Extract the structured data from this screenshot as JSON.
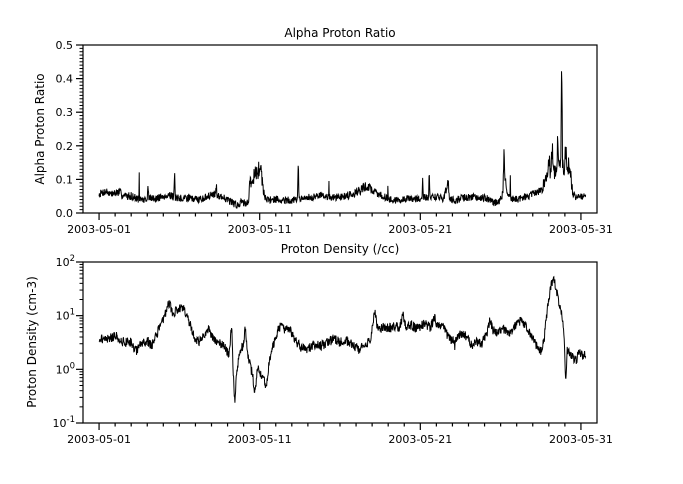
{
  "figure": {
    "background_color": "#ffffff",
    "line_color": "#000000"
  },
  "chart_data": [
    {
      "type": "line",
      "panel": "top",
      "title": "Alpha Proton Ratio",
      "ylabel": "Alpha Proton Ratio",
      "xlabel": "",
      "legend": "none",
      "grid": "off",
      "line_color": "#000000",
      "x_axis": {
        "scale": "linear-time",
        "range_days": [
          -1,
          31
        ],
        "epoch_day0": "2003-05-01",
        "major_tick_days": [
          0,
          10,
          20,
          30
        ],
        "major_tick_labels": [
          "2003-05-01",
          "2003-05-11",
          "2003-05-21",
          "2003-05-31"
        ],
        "minor_tick_interval_days": 1
      },
      "y_axis": {
        "scale": "linear",
        "range": [
          0.0,
          0.5
        ],
        "major_ticks": [
          0.0,
          0.1,
          0.2,
          0.3,
          0.4,
          0.5
        ],
        "major_tick_labels": [
          "0.0",
          "0.1",
          "0.2",
          "0.3",
          "0.4",
          "0.5"
        ],
        "minor_tick_interval": 0.01
      },
      "data_start_day": 0.0,
      "data_end_day": 30.3,
      "samples_per_day": 48,
      "noise": {
        "mode": "additive",
        "amplitude": 0.011,
        "relative_factor": 0.22,
        "seed": 7
      },
      "series_anchors": [
        [
          0,
          0.05
        ],
        [
          0.4,
          0.058
        ],
        [
          0.8,
          0.05
        ],
        [
          1.2,
          0.06
        ],
        [
          1.6,
          0.052
        ],
        [
          2,
          0.056
        ],
        [
          2.4,
          0.048
        ],
        [
          2.8,
          0.044
        ],
        [
          3,
          0.046
        ],
        [
          3.05,
          0.1
        ],
        [
          3.1,
          0.048
        ],
        [
          3.5,
          0.042
        ],
        [
          4,
          0.05
        ],
        [
          4.4,
          0.056
        ],
        [
          4.65,
          0.05
        ],
        [
          4.7,
          0.11
        ],
        [
          4.75,
          0.05
        ],
        [
          5.2,
          0.048
        ],
        [
          5.6,
          0.052
        ],
        [
          6,
          0.044
        ],
        [
          6.4,
          0.04
        ],
        [
          6.8,
          0.046
        ],
        [
          7.25,
          0.05
        ],
        [
          7.3,
          0.08
        ],
        [
          7.35,
          0.046
        ],
        [
          7.8,
          0.04
        ],
        [
          8.2,
          0.03
        ],
        [
          8.6,
          0.024
        ],
        [
          8.9,
          0.034
        ],
        [
          9.1,
          0.028
        ],
        [
          9.3,
          0.03
        ],
        [
          9.4,
          0.1
        ],
        [
          9.55,
          0.09
        ],
        [
          9.7,
          0.125
        ],
        [
          9.85,
          0.105
        ],
        [
          10,
          0.135
        ],
        [
          10.1,
          0.115
        ],
        [
          10.2,
          0.07
        ],
        [
          10.35,
          0.04
        ],
        [
          10.6,
          0.034
        ],
        [
          11,
          0.04
        ],
        [
          11.5,
          0.042
        ],
        [
          12,
          0.046
        ],
        [
          12.35,
          0.046
        ],
        [
          12.4,
          0.165
        ],
        [
          12.45,
          0.046
        ],
        [
          12.9,
          0.05
        ],
        [
          13.4,
          0.048
        ],
        [
          13.9,
          0.052
        ],
        [
          14.4,
          0.046
        ],
        [
          14.9,
          0.05
        ],
        [
          15.4,
          0.055
        ],
        [
          15.9,
          0.06
        ],
        [
          16.4,
          0.068
        ],
        [
          16.7,
          0.074
        ],
        [
          17,
          0.06
        ],
        [
          17.5,
          0.046
        ],
        [
          18,
          0.04
        ],
        [
          18.5,
          0.038
        ],
        [
          19,
          0.044
        ],
        [
          19.5,
          0.042
        ],
        [
          20.1,
          0.042
        ],
        [
          20.15,
          0.108
        ],
        [
          20.2,
          0.044
        ],
        [
          20.5,
          0.046
        ],
        [
          20.55,
          0.108
        ],
        [
          20.6,
          0.046
        ],
        [
          21,
          0.05
        ],
        [
          21.4,
          0.048
        ],
        [
          21.75,
          0.094
        ],
        [
          21.8,
          0.048
        ],
        [
          22.2,
          0.046
        ],
        [
          22.7,
          0.05
        ],
        [
          23.2,
          0.048
        ],
        [
          23.7,
          0.044
        ],
        [
          24.2,
          0.04
        ],
        [
          24.6,
          0.03
        ],
        [
          24.9,
          0.032
        ],
        [
          25.15,
          0.06
        ],
        [
          25.2,
          0.17
        ],
        [
          25.3,
          0.09
        ],
        [
          25.45,
          0.052
        ],
        [
          25.7,
          0.042
        ],
        [
          26.1,
          0.038
        ],
        [
          26.5,
          0.042
        ],
        [
          26.9,
          0.046
        ],
        [
          27.3,
          0.056
        ],
        [
          27.6,
          0.072
        ],
        [
          27.85,
          0.1
        ],
        [
          28,
          0.17
        ],
        [
          28.1,
          0.12
        ],
        [
          28.2,
          0.195
        ],
        [
          28.3,
          0.14
        ],
        [
          28.45,
          0.12
        ],
        [
          28.55,
          0.2
        ],
        [
          28.65,
          0.13
        ],
        [
          28.75,
          0.16
        ],
        [
          28.8,
          0.46
        ],
        [
          28.85,
          0.16
        ],
        [
          28.95,
          0.12
        ],
        [
          29.05,
          0.215
        ],
        [
          29.15,
          0.12
        ],
        [
          29.3,
          0.155
        ],
        [
          29.4,
          0.09
        ],
        [
          29.5,
          0.06
        ],
        [
          29.7,
          0.046
        ],
        [
          30,
          0.05
        ],
        [
          30.3,
          0.046
        ]
      ]
    },
    {
      "type": "line",
      "panel": "bottom",
      "title": "Proton Density (/cc)",
      "ylabel": "Proton Density (cm-3)",
      "xlabel": "",
      "legend": "none",
      "grid": "off",
      "line_color": "#000000",
      "x_axis": {
        "scale": "linear-time",
        "range_days": [
          -1,
          31
        ],
        "epoch_day0": "2003-05-01",
        "major_tick_days": [
          0,
          10,
          20,
          30
        ],
        "major_tick_labels": [
          "2003-05-01",
          "2003-05-11",
          "2003-05-21",
          "2003-05-31"
        ],
        "minor_tick_interval_days": 1
      },
      "y_axis": {
        "scale": "log",
        "range": [
          0.1,
          100
        ],
        "major_tick_exponents": [
          -1,
          0,
          1,
          2
        ],
        "minor_ticks": "2-9 each decade"
      },
      "data_start_day": 0.0,
      "data_end_day": 30.3,
      "samples_per_day": 48,
      "noise": {
        "mode": "log10",
        "amplitude": 0.09,
        "seed": 21
      },
      "series_anchors": [
        [
          0,
          3.5
        ],
        [
          0.5,
          3.2
        ],
        [
          1,
          3.8
        ],
        [
          1.5,
          3.0
        ],
        [
          2,
          3.2
        ],
        [
          2.3,
          2.2
        ],
        [
          2.6,
          3.0
        ],
        [
          3,
          3.5
        ],
        [
          3.3,
          2.8
        ],
        [
          3.6,
          4.5
        ],
        [
          3.9,
          7.0
        ],
        [
          4.2,
          12.0
        ],
        [
          4.4,
          16.0
        ],
        [
          4.6,
          9.0
        ],
        [
          4.8,
          11.0
        ],
        [
          5,
          12.0
        ],
        [
          5.2,
          13.0
        ],
        [
          5.4,
          10.0
        ],
        [
          5.6,
          7.0
        ],
        [
          5.9,
          4.0
        ],
        [
          6.2,
          3.0
        ],
        [
          6.5,
          4.5
        ],
        [
          6.8,
          6.0
        ],
        [
          7.1,
          4.0
        ],
        [
          7.5,
          3.5
        ],
        [
          7.9,
          2.8
        ],
        [
          8.1,
          2.2
        ],
        [
          8.25,
          8.0
        ],
        [
          8.35,
          0.9
        ],
        [
          8.45,
          0.3
        ],
        [
          8.6,
          1.2
        ],
        [
          8.8,
          2.5
        ],
        [
          9,
          3.0
        ],
        [
          9.1,
          6.5
        ],
        [
          9.25,
          2.0
        ],
        [
          9.4,
          1.2
        ],
        [
          9.55,
          0.8
        ],
        [
          9.7,
          0.35
        ],
        [
          9.85,
          1.0
        ],
        [
          10,
          0.9
        ],
        [
          10.2,
          0.7
        ],
        [
          10.4,
          0.45
        ],
        [
          10.6,
          1.5
        ],
        [
          10.8,
          2.5
        ],
        [
          11,
          4.0
        ],
        [
          11.2,
          6.0
        ],
        [
          11.4,
          7.0
        ],
        [
          11.6,
          5.5
        ],
        [
          11.8,
          6.5
        ],
        [
          12,
          5.0
        ],
        [
          12.3,
          3.5
        ],
        [
          12.6,
          2.8
        ],
        [
          13,
          2.5
        ],
        [
          13.4,
          3.0
        ],
        [
          13.8,
          2.6
        ],
        [
          14.2,
          2.8
        ],
        [
          14.6,
          3.2
        ],
        [
          15,
          2.7
        ],
        [
          15.4,
          3.0
        ],
        [
          15.8,
          2.5
        ],
        [
          16.2,
          2.2
        ],
        [
          16.6,
          2.8
        ],
        [
          16.9,
          3.5
        ],
        [
          17.15,
          13.0
        ],
        [
          17.3,
          7.0
        ],
        [
          17.5,
          6.0
        ],
        [
          17.8,
          6.5
        ],
        [
          18.1,
          6.0
        ],
        [
          18.4,
          6.5
        ],
        [
          18.7,
          6.0
        ],
        [
          18.9,
          9.0
        ],
        [
          19.1,
          6.0
        ],
        [
          19.4,
          6.5
        ],
        [
          19.7,
          5.5
        ],
        [
          20,
          6.0
        ],
        [
          20.3,
          7.0
        ],
        [
          20.6,
          6.0
        ],
        [
          20.9,
          9.5
        ],
        [
          21.1,
          6.5
        ],
        [
          21.4,
          7.5
        ],
        [
          21.7,
          5.0
        ],
        [
          22,
          4.0
        ],
        [
          22.3,
          4.5
        ],
        [
          22.6,
          5.5
        ],
        [
          22.9,
          4.5
        ],
        [
          23.2,
          3.0
        ],
        [
          23.5,
          3.5
        ],
        [
          23.8,
          3.0
        ],
        [
          24.1,
          4.0
        ],
        [
          24.35,
          8.0
        ],
        [
          24.5,
          5.0
        ],
        [
          24.8,
          4.5
        ],
        [
          25.1,
          5.5
        ],
        [
          25.4,
          4.5
        ],
        [
          25.7,
          5.0
        ],
        [
          26,
          7.0
        ],
        [
          26.3,
          8.5
        ],
        [
          26.6,
          6.5
        ],
        [
          26.9,
          4.5
        ],
        [
          27.2,
          3.0
        ],
        [
          27.5,
          2.2
        ],
        [
          27.7,
          3.5
        ],
        [
          27.9,
          12.0
        ],
        [
          28.1,
          30.0
        ],
        [
          28.25,
          45.0
        ],
        [
          28.4,
          35.0
        ],
        [
          28.55,
          20.0
        ],
        [
          28.7,
          12.0
        ],
        [
          28.85,
          8.0
        ],
        [
          28.95,
          3.5
        ],
        [
          29.05,
          0.45
        ],
        [
          29.15,
          2.0
        ],
        [
          29.3,
          1.8
        ],
        [
          29.5,
          1.4
        ],
        [
          29.7,
          1.2
        ],
        [
          29.9,
          2.0
        ],
        [
          30.1,
          1.6
        ],
        [
          30.3,
          1.8
        ]
      ]
    }
  ]
}
